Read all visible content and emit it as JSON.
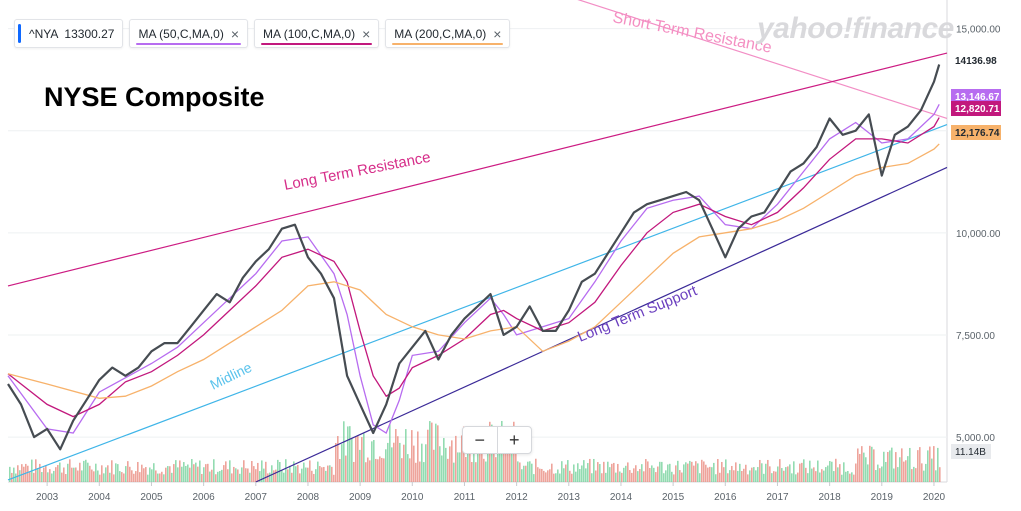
{
  "toolbar": {
    "chips": [
      {
        "label": "^NYA",
        "value": "13300.27",
        "color": "#0f69ff"
      },
      {
        "label": "MA (50,C,MA,0)",
        "color": "#b76cf0"
      },
      {
        "label": "MA (100,C,MA,0)",
        "color": "#c2187d"
      },
      {
        "label": "MA (200,C,MA,0)",
        "color": "#f7b26b"
      }
    ],
    "close_symbol": "×"
  },
  "logo": {
    "text": "yahoo!finance"
  },
  "title": "NYSE Composite",
  "zoom": {
    "minus": "−",
    "plus": "+"
  },
  "chart_data": {
    "type": "line",
    "title": "NYSE Composite",
    "x_range": [
      2002.25,
      2020.25
    ],
    "y_range": [
      3900,
      15700
    ],
    "x_ticks": [
      "2003",
      "2004",
      "2005",
      "2006",
      "2007",
      "2008",
      "2009",
      "2010",
      "2011",
      "2012",
      "2013",
      "2014",
      "2015",
      "2016",
      "2017",
      "2018",
      "2019",
      "2020"
    ],
    "y_ticks": [
      {
        "value": 5000,
        "label": "5,000.00"
      },
      {
        "value": 7500,
        "label": "7,500.00"
      },
      {
        "value": 10000,
        "label": "10,000.00"
      },
      {
        "value": 12500,
        "label": "12,500.00"
      },
      {
        "value": 15000,
        "label": "15,000.00"
      }
    ],
    "price": {
      "name": "^NYA",
      "color": "#464c52",
      "x": [
        2002.25,
        2002.5,
        2002.75,
        2003.0,
        2003.25,
        2003.5,
        2003.75,
        2004.0,
        2004.25,
        2004.5,
        2004.75,
        2005.0,
        2005.25,
        2005.5,
        2005.75,
        2006.0,
        2006.25,
        2006.5,
        2006.75,
        2007.0,
        2007.25,
        2007.5,
        2007.75,
        2008.0,
        2008.25,
        2008.5,
        2008.75,
        2009.0,
        2009.25,
        2009.5,
        2009.75,
        2010.0,
        2010.25,
        2010.5,
        2010.75,
        2011.0,
        2011.25,
        2011.5,
        2011.75,
        2012.0,
        2012.25,
        2012.5,
        2012.75,
        2013.0,
        2013.25,
        2013.5,
        2013.75,
        2014.0,
        2014.25,
        2014.5,
        2014.75,
        2015.0,
        2015.25,
        2015.5,
        2015.75,
        2016.0,
        2016.25,
        2016.5,
        2016.75,
        2017.0,
        2017.25,
        2017.5,
        2017.75,
        2018.0,
        2018.25,
        2018.5,
        2018.75,
        2019.0,
        2019.25,
        2019.5,
        2019.75,
        2020.0,
        2020.1
      ],
      "y": [
        6300,
        5800,
        5000,
        5200,
        4700,
        5400,
        5900,
        6400,
        6700,
        6500,
        6700,
        7100,
        7300,
        7300,
        7700,
        8100,
        8500,
        8300,
        8900,
        9300,
        9600,
        10100,
        10200,
        9400,
        9000,
        8400,
        6500,
        5800,
        5100,
        5800,
        6800,
        7200,
        7600,
        6900,
        7500,
        7900,
        8200,
        8500,
        7500,
        7700,
        8200,
        7600,
        7600,
        8100,
        8800,
        9000,
        9500,
        10000,
        10500,
        10700,
        10800,
        10900,
        11000,
        10800,
        10100,
        9400,
        10100,
        10400,
        10500,
        11000,
        11500,
        11700,
        12100,
        12800,
        12400,
        12500,
        12900,
        11400,
        12400,
        12600,
        13000,
        13700,
        14120
      ]
    },
    "moving_averages": [
      {
        "name": "MA (50,C,MA,0)",
        "color": "#b76cf0",
        "last_label": "13,146.67",
        "x": [
          2002.25,
          2003.0,
          2003.5,
          2004.0,
          2004.5,
          2005.0,
          2005.5,
          2006.0,
          2006.5,
          2007.0,
          2007.5,
          2008.0,
          2008.5,
          2008.75,
          2009.0,
          2009.25,
          2009.5,
          2009.75,
          2010.0,
          2010.5,
          2011.0,
          2011.5,
          2011.75,
          2012.0,
          2012.5,
          2013.0,
          2013.5,
          2014.0,
          2014.5,
          2015.0,
          2015.5,
          2016.0,
          2016.5,
          2017.0,
          2017.5,
          2018.0,
          2018.5,
          2019.0,
          2019.5,
          2020.0,
          2020.1
        ],
        "y": [
          6500,
          5200,
          5100,
          6100,
          6450,
          6800,
          7200,
          7800,
          8400,
          9000,
          9800,
          9900,
          9000,
          8000,
          6500,
          5300,
          5100,
          5900,
          7000,
          7100,
          7800,
          8400,
          8000,
          7500,
          7700,
          7900,
          8800,
          9800,
          10600,
          10800,
          10900,
          10200,
          10100,
          10700,
          11500,
          12300,
          12700,
          12200,
          12300,
          12900,
          13146
        ]
      },
      {
        "name": "MA (100,C,MA,0)",
        "color": "#c2187d",
        "last_label": "12,820.71",
        "x": [
          2002.25,
          2003.0,
          2003.5,
          2004.0,
          2004.5,
          2005.0,
          2005.5,
          2006.0,
          2006.5,
          2007.0,
          2007.5,
          2008.0,
          2008.5,
          2008.75,
          2009.0,
          2009.25,
          2009.5,
          2009.75,
          2010.0,
          2010.5,
          2011.0,
          2011.5,
          2011.75,
          2012.0,
          2012.5,
          2013.0,
          2013.5,
          2014.0,
          2014.5,
          2015.0,
          2015.5,
          2016.0,
          2016.5,
          2017.0,
          2017.5,
          2018.0,
          2018.5,
          2019.0,
          2019.5,
          2020.0,
          2020.1
        ],
        "y": [
          6550,
          5800,
          5500,
          5800,
          6350,
          6600,
          7000,
          7500,
          8100,
          8700,
          9400,
          9600,
          9300,
          8800,
          7600,
          6500,
          6000,
          6200,
          6700,
          7000,
          7400,
          8000,
          8100,
          7900,
          7600,
          7800,
          8300,
          9200,
          10000,
          10500,
          10700,
          10400,
          10200,
          10500,
          11100,
          11800,
          12300,
          12300,
          12200,
          12600,
          12820
        ]
      },
      {
        "name": "MA (200,C,MA,0)",
        "color": "#f7b26b",
        "last_label": "12,176.74",
        "x": [
          2002.25,
          2003.0,
          2004.0,
          2004.5,
          2005.0,
          2005.5,
          2006.0,
          2006.5,
          2007.0,
          2007.5,
          2008.0,
          2008.5,
          2009.0,
          2009.5,
          2010.0,
          2010.5,
          2011.0,
          2011.5,
          2012.0,
          2012.5,
          2013.0,
          2013.5,
          2014.0,
          2014.5,
          2015.0,
          2015.5,
          2016.0,
          2016.5,
          2017.0,
          2017.5,
          2018.0,
          2018.5,
          2019.0,
          2019.5,
          2020.0,
          2020.1
        ],
        "y": [
          6550,
          6300,
          5950,
          6000,
          6250,
          6600,
          6900,
          7300,
          7700,
          8100,
          8700,
          8800,
          8600,
          8000,
          7700,
          7500,
          7400,
          7600,
          7700,
          7100,
          7350,
          7700,
          8300,
          8900,
          9500,
          9900,
          10000,
          10100,
          10300,
          10600,
          11000,
          11400,
          11600,
          11700,
          12050,
          12176
        ]
      }
    ],
    "last_price_label": "14136.98",
    "volume_label": "11.14B",
    "trendlines": [
      {
        "name": "Short Term Resistance",
        "color": "#f28ec5",
        "points": [
          [
            2011.5,
            16400
          ],
          [
            2020.25,
            12800
          ]
        ]
      },
      {
        "name": "Long Term Resistance",
        "color": "#cc1b82",
        "points": [
          [
            2002.25,
            8700
          ],
          [
            2020.25,
            14400
          ]
        ]
      },
      {
        "name": "Midline",
        "color": "#3fb5e8",
        "points": [
          [
            2002.25,
            3950
          ],
          [
            2020.25,
            12650
          ]
        ]
      },
      {
        "name": "Long Term Support",
        "color": "#3b2a98",
        "points": [
          [
            2007.0,
            3900
          ],
          [
            2020.25,
            11600
          ]
        ]
      }
    ],
    "annotations": [
      {
        "text": "Short Term Resistance",
        "color": "#f48fc2"
      },
      {
        "text": "Long Term Resistance",
        "color": "#d62f8a"
      },
      {
        "text": "Midline",
        "color": "#5bc3ec"
      },
      {
        "text": "Long Term Support",
        "color": "#6b3fbf"
      }
    ]
  }
}
